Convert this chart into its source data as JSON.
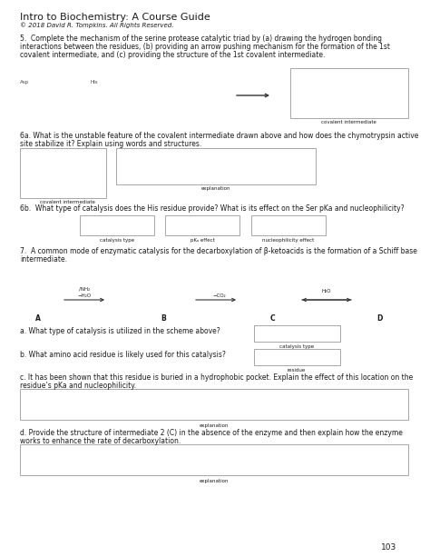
{
  "title": "Intro to Biochemistry: A Course Guide",
  "copyright": "© 2018 David R. Tompkins. All Rights Reserved.",
  "bg_color": "#ffffff",
  "page_number": "103",
  "q5_text_1": "5.  Complete the mechanism of the serine protease catalytic triad by (a) drawing the hydrogen bonding",
  "q5_text_2": "interactions between the residues, (b) providing an arrow pushing mechanism for the formation of the 1",
  "q5_text_2_sup": "st",
  "q5_text_3": "covalent intermediate, and (c) providing the structure of the 1",
  "q5_text_3_sup": "st",
  "q5_text_3_end": " covalent intermediate.",
  "q6a_text_1": "6a. What is the unstable feature of the covalent intermediate drawn above and how does the chymotrypsin active",
  "q6a_text_2": "site stabilize it? Explain using words and structures.",
  "q6b_text": "6b.  What type of catalysis does the His residue provide? What is its effect on the Ser pK",
  "q6b_sub": "a",
  "q6b_end": " and nucleophilicity?",
  "q7_text_1": "7.  A common mode of enzymatic catalysis for the decarboxylation of β-ketoacids is the formation of a Schiff base",
  "q7_text_2": "intermediate.",
  "q7a_text": "a. What type of catalysis is utilized in the scheme above?",
  "q7b_text": "b. What amino acid residue is likely used for this catalysis?",
  "q7c_text_1": "c. It has been shown that this residue is buried in a hydrophobic pocket. Explain the effect of this location on the",
  "q7c_text_2": "residue’s pK",
  "q7c_sub": "a",
  "q7c_end": " and nucleophilicity.",
  "q7d_text_1": "d. Provide the structure of intermediate 2 (C) in the absence of the enzyme and then explain how the enzyme",
  "q7d_text_2": "works to enhance the rate of decarboxylation.",
  "lbl_cov_int": "covalent intermediate",
  "lbl_explanation": "explanation",
  "lbl_cov_int2": "covalent intermediate",
  "lbl_catalysis_type": "catalysis type",
  "lbl_pka_effect": "pKₐ effect",
  "lbl_nucleophilicity": "nucleophilicity effect",
  "lbl_A": "A",
  "lbl_B": "B",
  "lbl_C": "C",
  "lbl_D": "D",
  "lbl_catalysis_type2": "catalysis type",
  "lbl_residue": "residue",
  "lbl_explanation2": "explanation",
  "lbl_explanation3": "explanation"
}
